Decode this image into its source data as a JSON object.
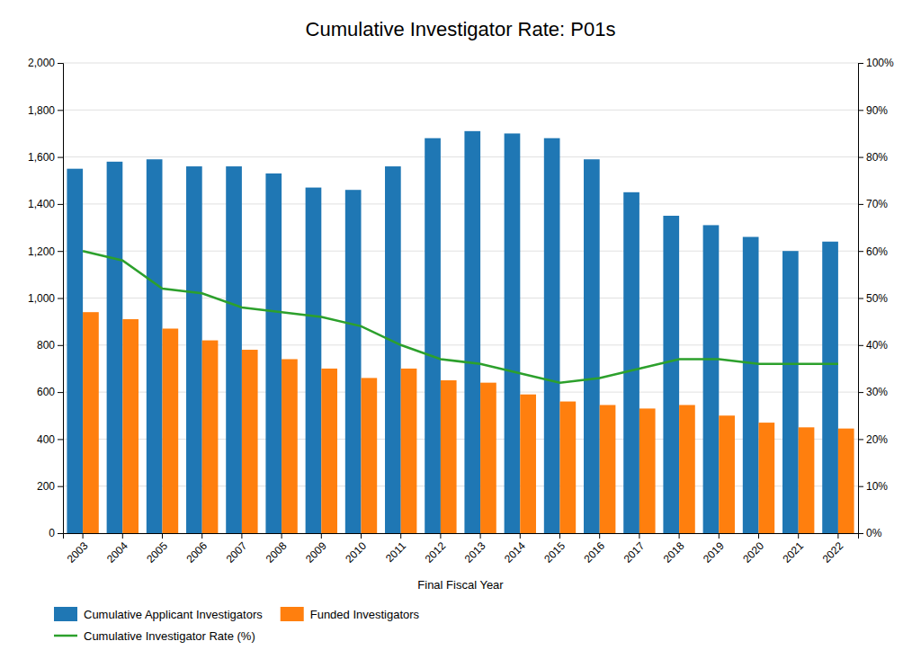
{
  "chart_data": {
    "type": "bar",
    "title": "Cumulative Investigator Rate: P01s",
    "xlabel": "Final Fiscal Year",
    "categories": [
      "2003",
      "2004",
      "2005",
      "2006",
      "2007",
      "2008",
      "2009",
      "2010",
      "2011",
      "2012",
      "2013",
      "2014",
      "2015",
      "2016",
      "2017",
      "2018",
      "2019",
      "2020",
      "2021",
      "2022"
    ],
    "series": [
      {
        "name": "Cumulative Applicant Investigators",
        "type": "bar",
        "values": [
          1550,
          1580,
          1590,
          1560,
          1560,
          1530,
          1470,
          1460,
          1560,
          1680,
          1710,
          1700,
          1680,
          1590,
          1450,
          1350,
          1310,
          1260,
          1200,
          1240
        ]
      },
      {
        "name": "Funded Investigators",
        "type": "bar",
        "values": [
          940,
          910,
          870,
          820,
          780,
          740,
          700,
          660,
          700,
          650,
          640,
          590,
          560,
          545,
          530,
          545,
          500,
          470,
          450,
          445
        ]
      },
      {
        "name": "Cumulative Investigator Rate (%)",
        "type": "line",
        "axis": "y2",
        "values": [
          60,
          58,
          52,
          51,
          48,
          47,
          46,
          44,
          40,
          37,
          36,
          34,
          32,
          33,
          35,
          37,
          37,
          36,
          36,
          36
        ]
      }
    ],
    "ylim": [
      0,
      2000
    ],
    "yticks": [
      0,
      200,
      400,
      600,
      800,
      {
        "value": 1000,
        "label": "1,000"
      },
      {
        "value": 1200,
        "label": "1,200"
      },
      {
        "value": 1400,
        "label": "1,400"
      },
      {
        "value": 1600,
        "label": "1,600"
      },
      {
        "value": 1800,
        "label": "1,800"
      },
      {
        "value": 2000,
        "label": "2,000"
      }
    ],
    "y2lim": [
      0,
      100
    ],
    "y2ticks": [
      {
        "value": 0,
        "label": "0%"
      },
      {
        "value": 10,
        "label": "10%"
      },
      {
        "value": 20,
        "label": "20%"
      },
      {
        "value": 30,
        "label": "30%"
      },
      {
        "value": 40,
        "label": "40%"
      },
      {
        "value": 50,
        "label": "50%"
      },
      {
        "value": 60,
        "label": "60%"
      },
      {
        "value": 70,
        "label": "70%"
      },
      {
        "value": 80,
        "label": "80%"
      },
      {
        "value": 90,
        "label": "90%"
      },
      {
        "value": 100,
        "label": "100%"
      }
    ],
    "grid": true,
    "legend": "lower left"
  }
}
